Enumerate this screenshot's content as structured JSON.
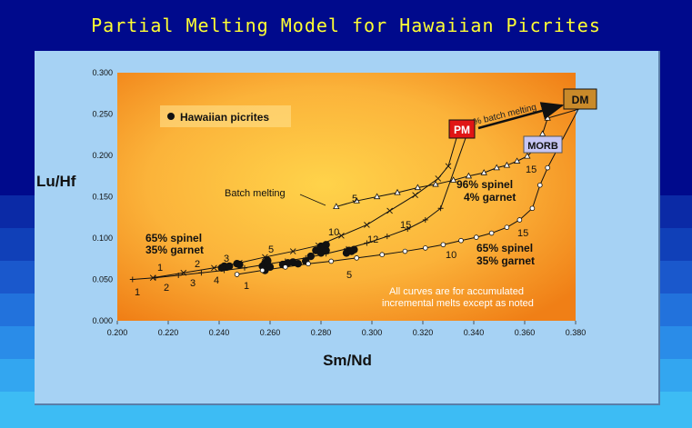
{
  "title": "Partial Melting Model for Hawaiian Picrites",
  "colors": {
    "title": "#ffff33",
    "panel": "#a6d2f4",
    "plot_center": "#ffd34a",
    "plot_edge": "#f07f16",
    "pm_box": "#e01515",
    "dm_box": "#c98a2a",
    "morb_box": "#c6c6f4"
  },
  "chart_data": {
    "type": "scatter",
    "title": "Partial Melting Model for Hawaiian Picrites",
    "xlabel": "Sm/Nd",
    "ylabel": "Lu/Hf",
    "xlim": [
      0.2,
      0.38
    ],
    "ylim": [
      0.0,
      0.3
    ],
    "x_ticks": [
      "0.200",
      "0.220",
      "0.240",
      "0.260",
      "0.280",
      "0.300",
      "0.320",
      "0.340",
      "0.360",
      "0.380"
    ],
    "y_ticks": [
      "0.000",
      "0.050",
      "0.100",
      "0.150",
      "0.200",
      "0.250",
      "0.300"
    ],
    "grid": false,
    "legend": {
      "position": "top-left",
      "entries": [
        "Hawaiian picrites"
      ]
    },
    "series": [
      {
        "name": "Hawaiian picrites",
        "marker": "filled-circle",
        "x": [
          0.241,
          0.242,
          0.243,
          0.244,
          0.247,
          0.248,
          0.257,
          0.258,
          0.258,
          0.259,
          0.259,
          0.26,
          0.258,
          0.265,
          0.267,
          0.269,
          0.271,
          0.274,
          0.276,
          0.278,
          0.28,
          0.28,
          0.281,
          0.282,
          0.282,
          0.29,
          0.291,
          0.292,
          0.293
        ],
        "y": [
          0.064,
          0.066,
          0.065,
          0.066,
          0.069,
          0.068,
          0.066,
          0.068,
          0.07,
          0.072,
          0.073,
          0.065,
          0.061,
          0.068,
          0.07,
          0.071,
          0.069,
          0.072,
          0.078,
          0.085,
          0.082,
          0.09,
          0.088,
          0.092,
          0.085,
          0.082,
          0.085,
          0.084,
          0.086
        ]
      },
      {
        "name": "Batch melting",
        "marker": "x",
        "x": [
          0.214,
          0.226,
          0.238,
          0.248,
          0.258,
          0.269,
          0.279,
          0.288,
          0.298,
          0.307,
          0.317,
          0.326,
          0.33
        ],
        "y": [
          0.052,
          0.058,
          0.064,
          0.07,
          0.077,
          0.084,
          0.091,
          0.103,
          0.116,
          0.133,
          0.152,
          0.172,
          0.187
        ]
      },
      {
        "name": "65% spinel 35% garnet",
        "marker": "plus",
        "x": [
          0.206,
          0.215,
          0.224,
          0.233,
          0.242,
          0.25,
          0.258,
          0.266,
          0.274,
          0.282,
          0.29,
          0.298,
          0.306,
          0.314,
          0.321,
          0.327
        ],
        "y": [
          0.05,
          0.052,
          0.055,
          0.058,
          0.061,
          0.064,
          0.068,
          0.072,
          0.076,
          0.081,
          0.087,
          0.094,
          0.102,
          0.111,
          0.122,
          0.136
        ]
      },
      {
        "name": "65% spinel 35% garnet (open circles)",
        "marker": "open-circle",
        "x": [
          0.247,
          0.257,
          0.266,
          0.275,
          0.284,
          0.294,
          0.304,
          0.313,
          0.321,
          0.328,
          0.335,
          0.341,
          0.347,
          0.353,
          0.358,
          0.363,
          0.366,
          0.369
        ],
        "y": [
          0.056,
          0.061,
          0.065,
          0.069,
          0.072,
          0.076,
          0.08,
          0.084,
          0.088,
          0.092,
          0.097,
          0.101,
          0.106,
          0.113,
          0.122,
          0.136,
          0.164,
          0.185
        ]
      },
      {
        "name": "96% spinel 4% garnet",
        "marker": "open-triangle",
        "x": [
          0.286,
          0.294,
          0.302,
          0.31,
          0.318,
          0.325,
          0.332,
          0.338,
          0.344,
          0.349,
          0.353,
          0.357,
          0.361,
          0.364,
          0.367,
          0.369
        ],
        "y": [
          0.138,
          0.145,
          0.15,
          0.155,
          0.161,
          0.165,
          0.17,
          0.175,
          0.179,
          0.185,
          0.188,
          0.193,
          0.199,
          0.208,
          0.226,
          0.245
        ]
      }
    ]
  },
  "annotations": {
    "pm": "PM",
    "dm": "DM",
    "morb": "MORB",
    "batch_arrow": "2% batch melting",
    "batch_melting": "Batch melting",
    "spinel96_a": "96% spinel",
    "spinel96_b": "4% garnet",
    "spinel65_left_a": "65% spinel",
    "spinel65_left_b": "35% garnet",
    "spinel65_right_a": "65% spinel",
    "spinel65_right_b": "35% garnet",
    "note_a": "All curves are for accumulated",
    "note_b": "incremental melts except as noted",
    "num_1a": "1",
    "num_1b": "1",
    "num_1c": "1",
    "num_1d": "1",
    "num_2a": "2",
    "num_2b": "2",
    "num_3a": "3",
    "num_3b": "3",
    "num_4": "4",
    "num_5a": "5",
    "num_5b": "5",
    "num_5c": "5",
    "num_10a": "10",
    "num_10b": "10",
    "num_12": "12",
    "num_15a": "15",
    "num_15b": "15",
    "num_15c": "15"
  }
}
